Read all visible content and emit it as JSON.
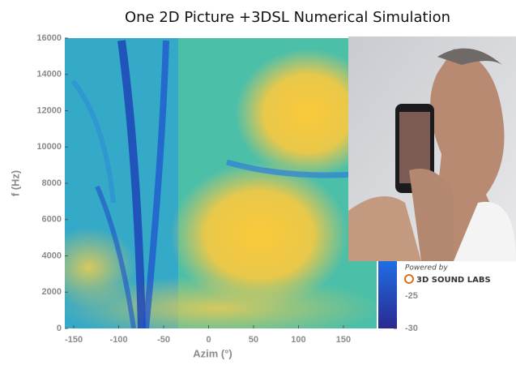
{
  "chart_data": {
    "type": "heatmap",
    "title": "One 2D Picture +3DSL Numerical Simulation",
    "x_label": "Azim (°)",
    "y_label": "f (Hz)",
    "xlim": [
      -160,
      187
    ],
    "xticks": [
      -150,
      -100,
      -50,
      0,
      50,
      100,
      150
    ],
    "ylim": [
      0,
      16000
    ],
    "yticks": [
      0,
      2000,
      4000,
      6000,
      8000,
      10000,
      12000,
      14000,
      16000
    ],
    "colorbar": {
      "lim": [
        -30,
        -19.4
      ],
      "ticks": [
        -25,
        -30
      ]
    },
    "badge": {
      "caption": "Powered by",
      "brand": "3D SOUND LABS"
    }
  }
}
